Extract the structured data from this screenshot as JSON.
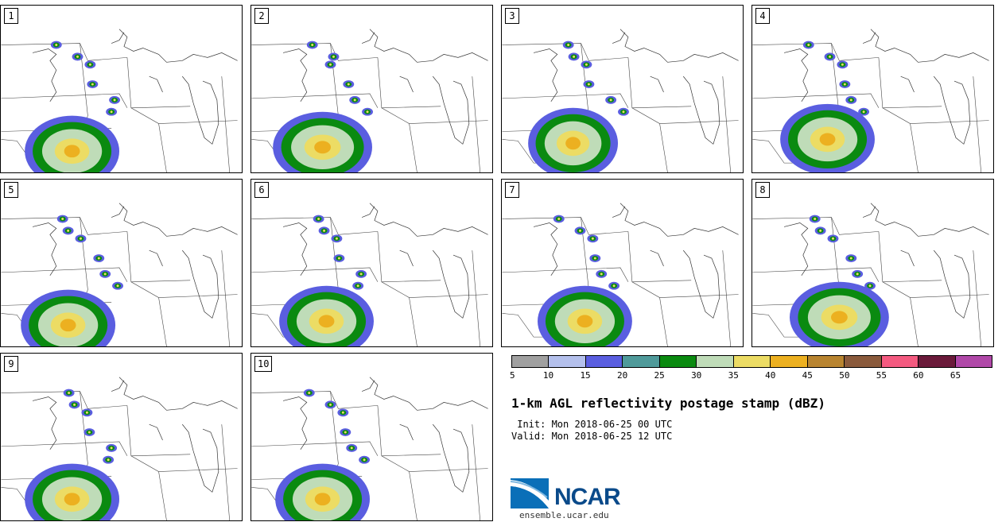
{
  "panels": [
    {
      "number": "1"
    },
    {
      "number": "2"
    },
    {
      "number": "3"
    },
    {
      "number": "4"
    },
    {
      "number": "5"
    },
    {
      "number": "6"
    },
    {
      "number": "7"
    },
    {
      "number": "8"
    },
    {
      "number": "9"
    },
    {
      "number": "10"
    }
  ],
  "colorbar": {
    "colors": [
      "#a0a0a0",
      "#b4c0ec",
      "#5a5ee0",
      "#4f9a9a",
      "#0a8a10",
      "#bfdcb8",
      "#ecdc64",
      "#ecb020",
      "#b88430",
      "#8a5a3c",
      "#f45a80",
      "#6a1a3a",
      "#b048a8"
    ],
    "labels": [
      "5",
      "10",
      "15",
      "20",
      "25",
      "30",
      "35",
      "40",
      "45",
      "50",
      "55",
      "60",
      "65"
    ]
  },
  "title": "1-km AGL reflectivity postage stamp (dBZ)",
  "init_line": " Init: Mon 2018-06-25 00 UTC",
  "valid_line": "Valid: Mon 2018-06-25 12 UTC",
  "logo": {
    "text": "NCAR",
    "url": "ensemble.ucar.edu"
  }
}
